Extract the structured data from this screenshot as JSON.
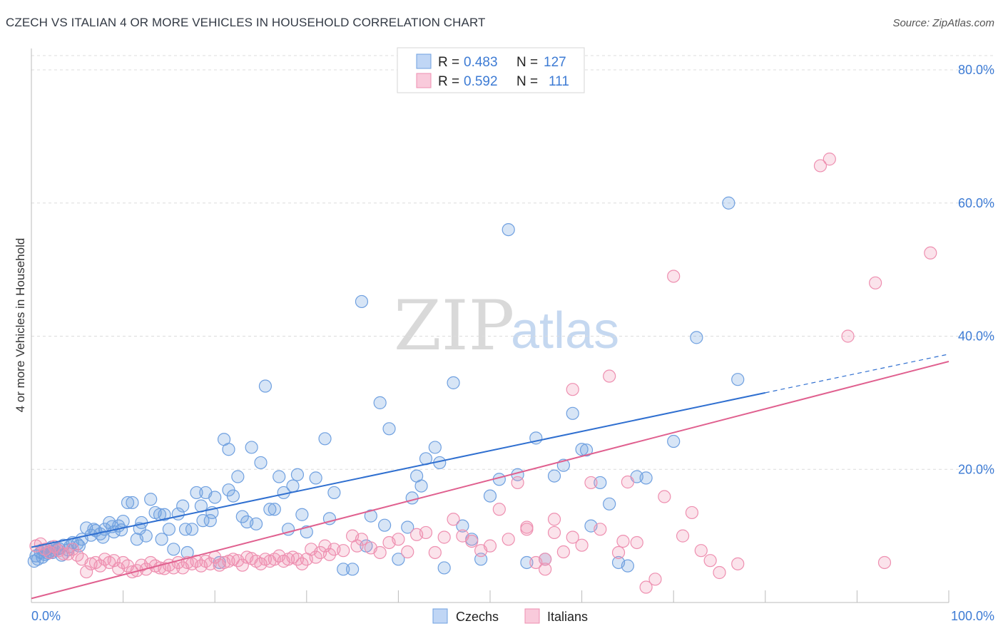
{
  "header": {
    "title": "CZECH VS ITALIAN 4 OR MORE VEHICLES IN HOUSEHOLD CORRELATION CHART",
    "source": "Source: ZipAtlas.com"
  },
  "legend": {
    "rows": [
      {
        "r_label": "R = ",
        "r_value": "0.483",
        "n_label": "N = ",
        "n_value": "127",
        "color": "#6fa0e0"
      },
      {
        "r_label": "R = ",
        "r_value": "0.592",
        "n_label": "N = ",
        "n_value": "111",
        "color": "#ee8fb0"
      }
    ]
  },
  "watermark": {
    "zip": "ZIP",
    "atlas": "atlas"
  },
  "chart_data": {
    "type": "scatter",
    "title": "CZECH VS ITALIAN 4 OR MORE VEHICLES IN HOUSEHOLD CORRELATION CHART",
    "xlabel": "",
    "ylabel": "4 or more Vehicles in Household",
    "xlim": [
      0,
      100
    ],
    "ylim": [
      0,
      85
    ],
    "x_tick_labels": [
      "0.0%",
      "100.0%"
    ],
    "y_ticks": [
      20,
      40,
      60,
      80
    ],
    "y_tick_labels": [
      "20.0%",
      "40.0%",
      "60.0%",
      "80.0%"
    ],
    "grid": true,
    "legend_position": "top-center",
    "series": [
      {
        "name": "Czechs",
        "color": "#6fa0e0",
        "line_color": "#2f6fd0",
        "trend": {
          "x0": 0,
          "y0": 8.3,
          "x1": 80,
          "y1": 31.5,
          "dash_to_x": 100,
          "dash_to_y": 37.3
        },
        "points": [
          [
            0.3,
            6.2
          ],
          [
            0.5,
            7
          ],
          [
            0.7,
            6.5
          ],
          [
            1,
            7.5
          ],
          [
            1.2,
            6.8
          ],
          [
            1.5,
            7.2
          ],
          [
            1.8,
            8
          ],
          [
            2,
            7.6
          ],
          [
            2.2,
            8.3
          ],
          [
            2.5,
            7.8
          ],
          [
            3,
            8.1
          ],
          [
            3.5,
            8.6
          ],
          [
            4,
            7.9
          ],
          [
            4.5,
            9
          ],
          [
            5,
            8.8
          ],
          [
            5.5,
            9.5
          ],
          [
            6,
            11.2
          ],
          [
            6.5,
            10.1
          ],
          [
            7,
            10.8
          ],
          [
            7.5,
            10.3
          ],
          [
            8,
            11
          ],
          [
            8.5,
            12
          ],
          [
            9,
            10.6
          ],
          [
            9.5,
            11.5
          ],
          [
            10,
            12.2
          ],
          [
            10.5,
            15
          ],
          [
            11,
            15
          ],
          [
            11.5,
            9.5
          ],
          [
            12,
            12
          ],
          [
            12.5,
            10
          ],
          [
            13,
            15.5
          ],
          [
            13.5,
            13.5
          ],
          [
            14,
            13.2
          ],
          [
            14.5,
            13.2
          ],
          [
            15,
            11
          ],
          [
            15.5,
            8
          ],
          [
            16,
            13.3
          ],
          [
            16.5,
            14.5
          ],
          [
            17,
            7.5
          ],
          [
            17.5,
            11
          ],
          [
            18,
            16.5
          ],
          [
            18.5,
            14.5
          ],
          [
            19,
            16.5
          ],
          [
            19.5,
            12.3
          ],
          [
            20,
            15.8
          ],
          [
            20.5,
            6
          ],
          [
            21,
            24.5
          ],
          [
            21.5,
            23
          ],
          [
            22,
            16
          ],
          [
            22.5,
            18.9
          ],
          [
            23,
            12.9
          ],
          [
            23.5,
            12.1
          ],
          [
            24,
            23.3
          ],
          [
            24.5,
            11.8
          ],
          [
            25,
            21
          ],
          [
            25.5,
            32.5
          ],
          [
            26,
            14
          ],
          [
            26.5,
            14
          ],
          [
            27,
            18.9
          ],
          [
            27.5,
            16.5
          ],
          [
            28,
            11
          ],
          [
            28.5,
            17.5
          ],
          [
            29,
            19.2
          ],
          [
            29.5,
            13.2
          ],
          [
            30,
            10.6
          ],
          [
            31,
            18.7
          ],
          [
            32,
            24.6
          ],
          [
            32.5,
            12.6
          ],
          [
            33,
            16.5
          ],
          [
            34,
            5
          ],
          [
            35,
            5
          ],
          [
            36,
            45.2
          ],
          [
            36.5,
            8.5
          ],
          [
            37,
            13
          ],
          [
            38,
            30
          ],
          [
            38.5,
            11.6
          ],
          [
            39,
            26.1
          ],
          [
            40,
            6.5
          ],
          [
            41,
            11.3
          ],
          [
            41.5,
            15.7
          ],
          [
            42,
            19
          ],
          [
            42.5,
            17.5
          ],
          [
            43,
            21.6
          ],
          [
            44,
            23.3
          ],
          [
            44.5,
            21
          ],
          [
            45,
            5.2
          ],
          [
            46,
            33
          ],
          [
            47,
            11.5
          ],
          [
            48,
            9.5
          ],
          [
            49,
            6.5
          ],
          [
            50,
            16
          ],
          [
            51,
            18.5
          ],
          [
            52,
            56
          ],
          [
            53,
            19.2
          ],
          [
            54,
            6
          ],
          [
            55,
            24.7
          ],
          [
            56,
            6.5
          ],
          [
            57,
            19
          ],
          [
            58,
            20.6
          ],
          [
            59,
            28.4
          ],
          [
            60,
            23
          ],
          [
            60.5,
            22.9
          ],
          [
            61,
            11.5
          ],
          [
            62,
            18
          ],
          [
            63,
            14.8
          ],
          [
            64,
            6
          ],
          [
            65,
            5.5
          ],
          [
            66,
            18.9
          ],
          [
            67,
            18.7
          ],
          [
            70,
            24.2
          ],
          [
            72.5,
            39.8
          ],
          [
            76,
            60
          ],
          [
            77,
            33.5
          ],
          [
            1.8,
            7.4
          ],
          [
            2.8,
            8.0
          ],
          [
            3.3,
            7.1
          ],
          [
            4.2,
            8.4
          ],
          [
            5.2,
            8.5
          ],
          [
            6.8,
            11
          ],
          [
            7.8,
            9.8
          ],
          [
            8.8,
            11.4
          ],
          [
            9.8,
            10.9
          ],
          [
            11.8,
            11.1
          ],
          [
            14.2,
            9.5
          ],
          [
            16.8,
            11
          ],
          [
            18.7,
            12.3
          ],
          [
            19.7,
            13.5
          ],
          [
            21.5,
            16.9
          ],
          [
            1.2,
            7.9
          ],
          [
            2.3,
            7.5
          ]
        ]
      },
      {
        "name": "Italians",
        "color": "#ee8fb0",
        "line_color": "#e0608f",
        "trend": {
          "x0": 0,
          "y0": 0.6,
          "x1": 100,
          "y1": 36.2
        },
        "points": [
          [
            0.5,
            8.5
          ],
          [
            1,
            8.8
          ],
          [
            1.5,
            8
          ],
          [
            2,
            7.5
          ],
          [
            2.5,
            8.4
          ],
          [
            3,
            7.8
          ],
          [
            3.5,
            7.3
          ],
          [
            4,
            7.3
          ],
          [
            4.5,
            8
          ],
          [
            5,
            7.1
          ],
          [
            5.5,
            6.5
          ],
          [
            6,
            4.6
          ],
          [
            6.5,
            5.8
          ],
          [
            7,
            6
          ],
          [
            7.5,
            5.5
          ],
          [
            8,
            6.5
          ],
          [
            8.5,
            6
          ],
          [
            9,
            6.3
          ],
          [
            9.5,
            5.1
          ],
          [
            10,
            6
          ],
          [
            10.5,
            5.5
          ],
          [
            11,
            4.6
          ],
          [
            11.5,
            4.8
          ],
          [
            12,
            5.6
          ],
          [
            12.5,
            5
          ],
          [
            13,
            6
          ],
          [
            13.5,
            5.5
          ],
          [
            14,
            5.2
          ],
          [
            14.5,
            5.1
          ],
          [
            15,
            5.6
          ],
          [
            15.5,
            5.2
          ],
          [
            16,
            6
          ],
          [
            16.5,
            5.2
          ],
          [
            17,
            6
          ],
          [
            17.5,
            5.8
          ],
          [
            18,
            6.2
          ],
          [
            18.5,
            5.5
          ],
          [
            19,
            6.2
          ],
          [
            19.5,
            5.8
          ],
          [
            20,
            6.8
          ],
          [
            20.5,
            5.6
          ],
          [
            21,
            6
          ],
          [
            21.5,
            6.2
          ],
          [
            22,
            6.5
          ],
          [
            22.5,
            6.3
          ],
          [
            23,
            5.6
          ],
          [
            23.5,
            6.8
          ],
          [
            24,
            6.6
          ],
          [
            24.5,
            6.2
          ],
          [
            25,
            5.8
          ],
          [
            25.5,
            6.5
          ],
          [
            26,
            6.2
          ],
          [
            26.5,
            6.5
          ],
          [
            27,
            7
          ],
          [
            27.5,
            6.2
          ],
          [
            28,
            6.5
          ],
          [
            28.5,
            6.8
          ],
          [
            29,
            6.5
          ],
          [
            29.5,
            5.8
          ],
          [
            30,
            6.5
          ],
          [
            30.5,
            8
          ],
          [
            31,
            6.8
          ],
          [
            31.5,
            7.5
          ],
          [
            32,
            8.5
          ],
          [
            32.5,
            7.2
          ],
          [
            33,
            8
          ],
          [
            34,
            7.8
          ],
          [
            35,
            10
          ],
          [
            35.5,
            8.5
          ],
          [
            36,
            9.5
          ],
          [
            37,
            8.2
          ],
          [
            38,
            7.5
          ],
          [
            39,
            9
          ],
          [
            40,
            9.5
          ],
          [
            41,
            7.6
          ],
          [
            42,
            10.2
          ],
          [
            43,
            10.5
          ],
          [
            44,
            7.5
          ],
          [
            45,
            9.8
          ],
          [
            46,
            12.5
          ],
          [
            47,
            10
          ],
          [
            48,
            9.2
          ],
          [
            49,
            7.8
          ],
          [
            50,
            8.5
          ],
          [
            51,
            14
          ],
          [
            52,
            9.5
          ],
          [
            53,
            18
          ],
          [
            54,
            11.3
          ],
          [
            55,
            6
          ],
          [
            56,
            5
          ],
          [
            57,
            12.5
          ],
          [
            58,
            7.6
          ],
          [
            59,
            9.8
          ],
          [
            60,
            8.6
          ],
          [
            61,
            18
          ],
          [
            62,
            11
          ],
          [
            63,
            34
          ],
          [
            64,
            7.5
          ],
          [
            65,
            18.1
          ],
          [
            66,
            9
          ],
          [
            67,
            2.3
          ],
          [
            68,
            3.5
          ],
          [
            69,
            15.9
          ],
          [
            70,
            49
          ],
          [
            71,
            10
          ],
          [
            72,
            13.5
          ],
          [
            73,
            7.8
          ],
          [
            74,
            6.3
          ],
          [
            75,
            4.5
          ],
          [
            77,
            5.8
          ],
          [
            86,
            65.6
          ],
          [
            87,
            66.6
          ],
          [
            89,
            40
          ],
          [
            92,
            48
          ],
          [
            93,
            6
          ],
          [
            98,
            52.5
          ],
          [
            54,
            11
          ],
          [
            56,
            6.5
          ],
          [
            57,
            10.5
          ],
          [
            59,
            32
          ],
          [
            64.5,
            9.2
          ]
        ]
      }
    ]
  },
  "bottom_legend": [
    {
      "label": "Czechs",
      "color": "#6fa0e0"
    },
    {
      "label": "Italians",
      "color": "#ee8fb0"
    }
  ]
}
